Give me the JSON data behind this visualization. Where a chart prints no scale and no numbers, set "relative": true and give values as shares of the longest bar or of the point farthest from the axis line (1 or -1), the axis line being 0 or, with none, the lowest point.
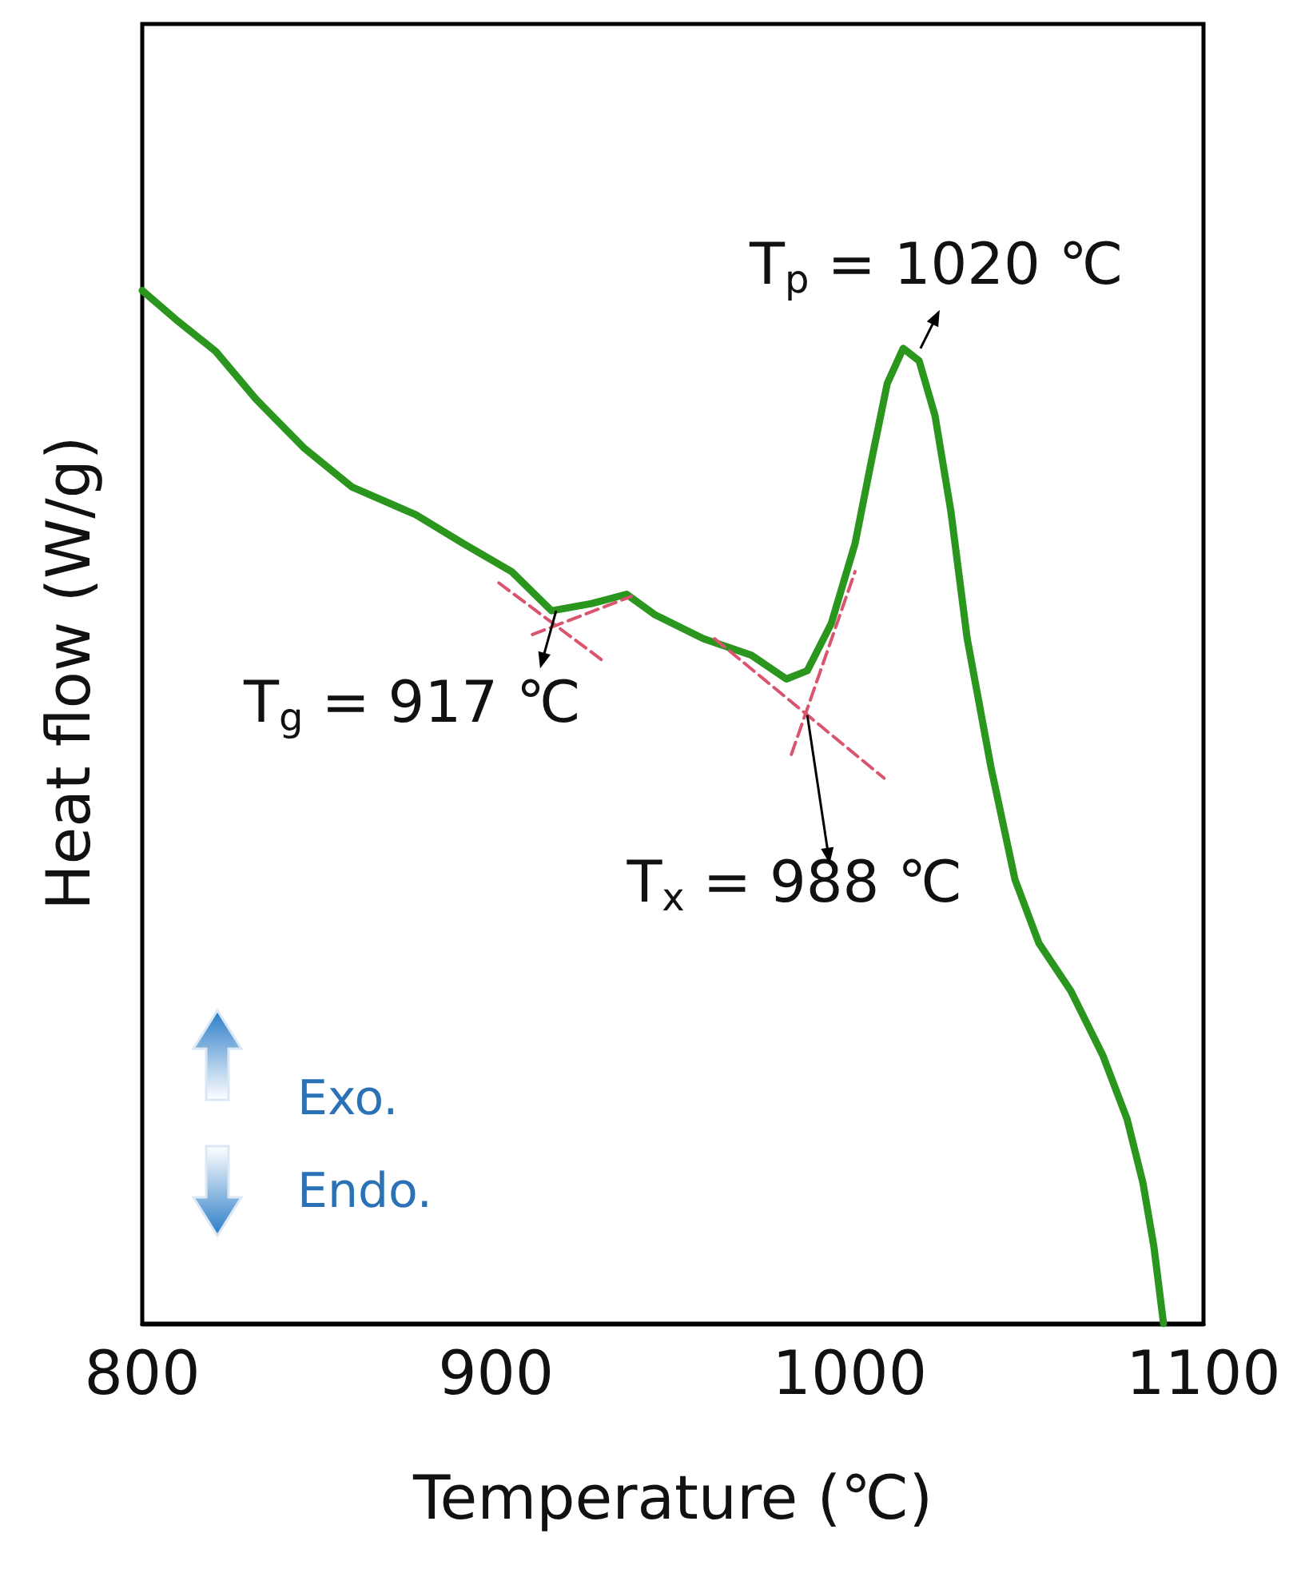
{
  "chart_data": {
    "type": "line",
    "relative": true,
    "xlabel": "Temperature (℃)",
    "ylabel": "Heat flow (W/g)",
    "xlim": [
      800,
      1100
    ],
    "xticks": [
      800,
      900,
      1000,
      1100
    ],
    "grid": false,
    "marker": "none",
    "series": [
      {
        "color": "#2a961e",
        "line_style": "solid",
        "x": [
          800,
          809.5,
          820.8,
          832.1,
          845.6,
          859.2,
          877.3,
          890.8,
          904.4,
          915.7,
          927,
          936.9,
          945,
          958.6,
          972.2,
          982.1,
          988,
          994.8,
          1001.5,
          1006,
          1010.6,
          1015.1,
          1019.6,
          1024.1,
          1028.6,
          1033.2,
          1039.9,
          1046.7,
          1053.5,
          1062.5,
          1071.5,
          1078.4,
          1082.9,
          1086,
          1088.7
        ],
        "values": [
          1,
          0.972,
          0.941,
          0.895,
          0.848,
          0.81,
          0.783,
          0.755,
          0.728,
          0.69,
          0.697,
          0.706,
          0.686,
          0.663,
          0.647,
          0.624,
          0.632,
          0.678,
          0.755,
          0.833,
          0.91,
          0.944,
          0.932,
          0.879,
          0.786,
          0.663,
          0.539,
          0.43,
          0.368,
          0.322,
          0.26,
          0.198,
          0.136,
          0.074,
          0
        ]
      },
      {
        "color": "#d9546e",
        "line_style": "dashed",
        "x": [
          900.8,
          930.1
        ],
        "values": [
          0.717,
          0.642
        ]
      },
      {
        "color": "#d9546e",
        "line_style": "dashed",
        "x": [
          910.3,
          938.3
        ],
        "values": [
          0.667,
          0.704
        ]
      },
      {
        "color": "#d9546e",
        "line_style": "dashed",
        "x": [
          961.8,
          1009.7
        ],
        "values": [
          0.663,
          0.528
        ]
      },
      {
        "color": "#d9546e",
        "line_style": "dashed",
        "x": [
          983.5,
          1001.5
        ],
        "values": [
          0.551,
          0.728
        ]
      }
    ],
    "annotations": [
      {
        "text": "T$_{g}$ = 917 ℃",
        "x": 917,
        "y": 0.69
      },
      {
        "text": "T$_{x}$ = 988 ℃",
        "x": 988,
        "y": 0.589
      },
      {
        "text": "T$_{p}$ = 1020 ℃",
        "x": 1020,
        "y": 0.944
      },
      "Exo.",
      "Endo."
    ]
  }
}
